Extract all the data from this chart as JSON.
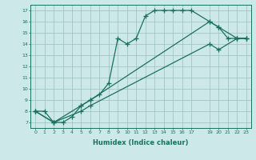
{
  "xlabel": "Humidex (Indice chaleur)",
  "background_color": "#cce8e8",
  "line_color": "#1a7060",
  "xlim": [
    -0.5,
    23.5
  ],
  "ylim": [
    6.5,
    17.5
  ],
  "xticks": [
    0,
    1,
    2,
    3,
    4,
    5,
    6,
    7,
    8,
    9,
    10,
    11,
    12,
    13,
    14,
    15,
    16,
    17,
    19,
    20,
    21,
    22,
    23
  ],
  "yticks": [
    7,
    8,
    9,
    10,
    11,
    12,
    13,
    14,
    15,
    16,
    17
  ],
  "line1_x": [
    0,
    1,
    2,
    3,
    4,
    5,
    6,
    7,
    8,
    9,
    10,
    11,
    12,
    13,
    14,
    15,
    16,
    17,
    19,
    20,
    21,
    22,
    23
  ],
  "line1_y": [
    8.0,
    8.0,
    7.0,
    7.0,
    7.5,
    8.5,
    9.0,
    9.5,
    10.5,
    14.5,
    14.0,
    14.5,
    16.5,
    17.0,
    17.0,
    17.0,
    17.0,
    17.0,
    16.0,
    15.5,
    14.5,
    14.5,
    14.5
  ],
  "line2_x": [
    0,
    2,
    5,
    6,
    19,
    20,
    22,
    23
  ],
  "line2_y": [
    8.0,
    7.0,
    8.5,
    9.0,
    16.0,
    15.5,
    14.5,
    14.5
  ],
  "line3_x": [
    0,
    2,
    5,
    6,
    19,
    20,
    22,
    23
  ],
  "line3_y": [
    8.0,
    7.0,
    8.0,
    8.5,
    14.0,
    13.5,
    14.5,
    14.5
  ]
}
